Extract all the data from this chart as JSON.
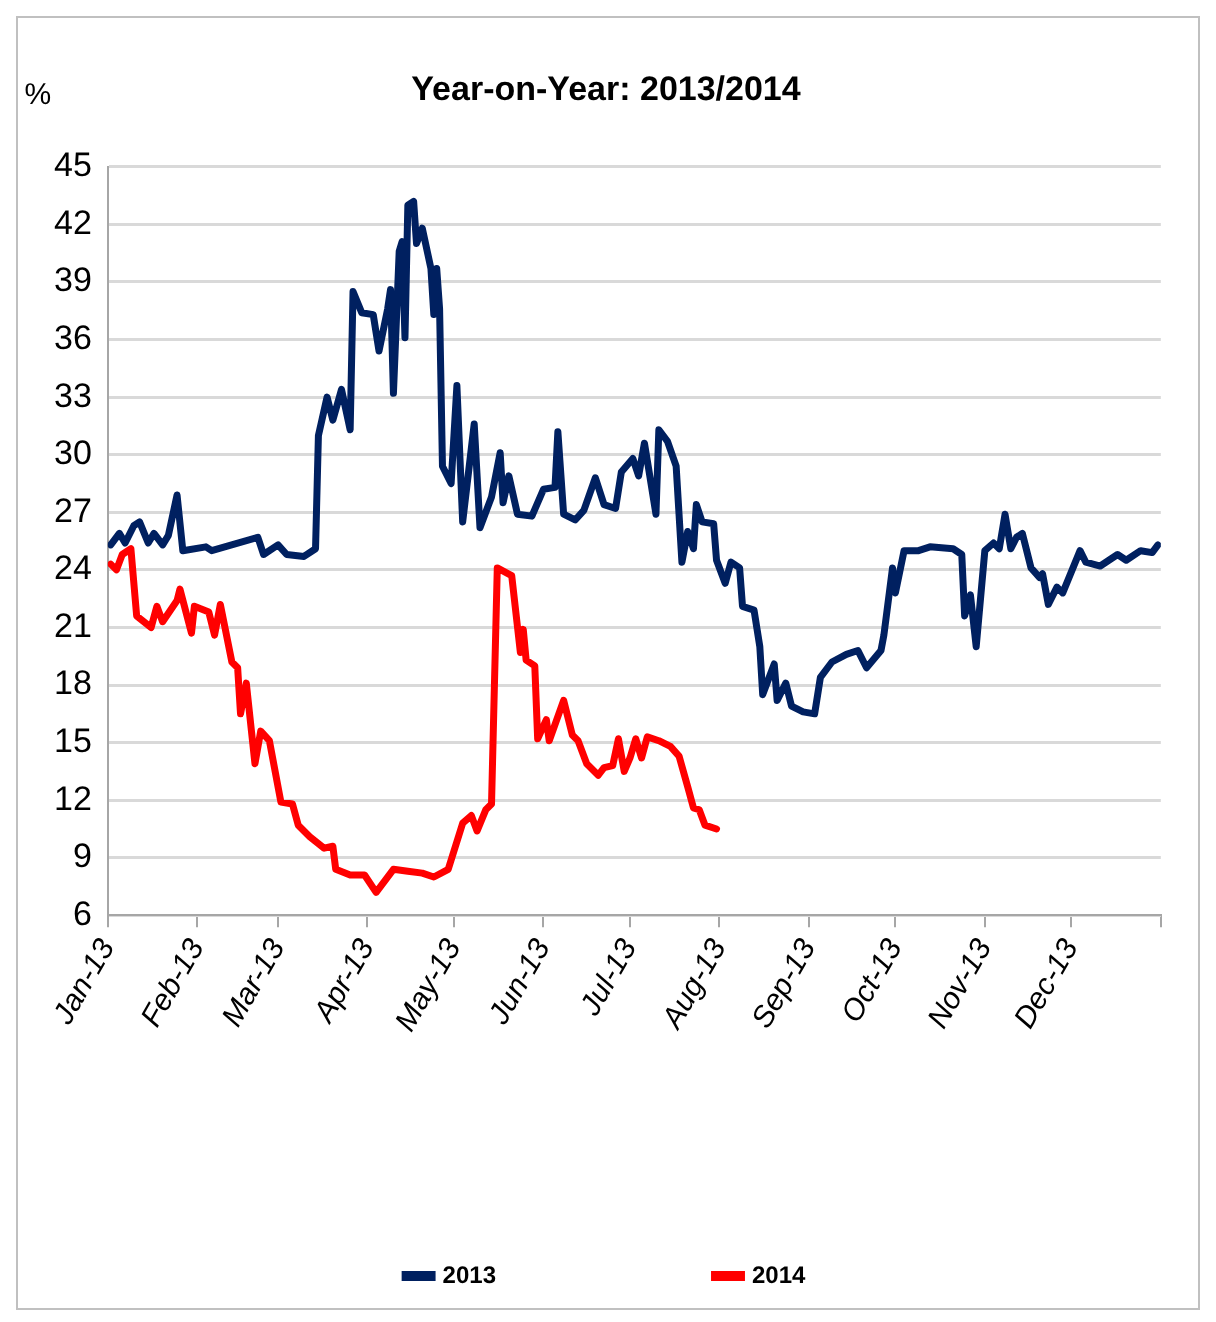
{
  "chart_data": {
    "type": "line",
    "title": "Year-on-Year: 2013/2014",
    "ylabel": "%",
    "xlim": [
      "2013-01-01",
      "2014-01-01"
    ],
    "xticks": [
      {
        "value": "2013-01-01",
        "label": "Jan-13"
      },
      {
        "value": "2013-02-01",
        "label": "Feb-13"
      },
      {
        "value": "2013-03-01",
        "label": "Mar-13"
      },
      {
        "value": "2013-04-01",
        "label": "Apr-13"
      },
      {
        "value": "2013-05-01",
        "label": "May-13"
      },
      {
        "value": "2013-06-01",
        "label": "Jun-13"
      },
      {
        "value": "2013-07-01",
        "label": "Jul-13"
      },
      {
        "value": "2013-08-01",
        "label": "Aug-13"
      },
      {
        "value": "2013-09-01",
        "label": "Sep-13"
      },
      {
        "value": "2013-10-01",
        "label": "Oct-13"
      },
      {
        "value": "2013-11-01",
        "label": "Nov-13"
      },
      {
        "value": "2013-12-01",
        "label": "Dec-13"
      },
      {
        "value": "2014-01-01",
        "label": null
      }
    ],
    "ylim": [
      6,
      45
    ],
    "yticks": [
      6,
      9,
      12,
      15,
      18,
      21,
      24,
      27,
      30,
      33,
      36,
      39,
      42,
      45
    ],
    "grid": "y",
    "legend": "bottom",
    "marker": "none",
    "line_style": "solid",
    "series": [
      {
        "name": "2013",
        "color": "#002060",
        "x": [
          "2013-01-02",
          "2013-01-05",
          "2013-01-07",
          "2013-01-10",
          "2013-01-12",
          "2013-01-15",
          "2013-01-17",
          "2013-01-20",
          "2013-01-22",
          "2013-01-25",
          "2013-01-27",
          "2013-02-04",
          "2013-02-06",
          "2013-02-22",
          "2013-02-24",
          "2013-03-01",
          "2013-03-04",
          "2013-03-10",
          "2013-03-14",
          "2013-03-15",
          "2013-03-18",
          "2013-03-20",
          "2013-03-23",
          "2013-03-26",
          "2013-03-27",
          "2013-03-30",
          "2013-04-03",
          "2013-04-05",
          "2013-04-08",
          "2013-04-09",
          "2013-04-10",
          "2013-04-12",
          "2013-04-13",
          "2013-04-14",
          "2013-04-15",
          "2013-04-17",
          "2013-04-18",
          "2013-04-20",
          "2013-04-23",
          "2013-04-24",
          "2013-04-25",
          "2013-04-26",
          "2013-04-27",
          "2013-04-30",
          "2013-05-02",
          "2013-05-04",
          "2013-05-08",
          "2013-05-10",
          "2013-05-14",
          "2013-05-17",
          "2013-05-18",
          "2013-05-20",
          "2013-05-23",
          "2013-05-28",
          "2013-06-01",
          "2013-06-05",
          "2013-06-06",
          "2013-06-08",
          "2013-06-12",
          "2013-06-15",
          "2013-06-19",
          "2013-06-22",
          "2013-06-26",
          "2013-06-28",
          "2013-07-02",
          "2013-07-04",
          "2013-07-06",
          "2013-07-07",
          "2013-07-10",
          "2013-07-11",
          "2013-07-14",
          "2013-07-17",
          "2013-07-19",
          "2013-07-21",
          "2013-07-23",
          "2013-07-24",
          "2013-07-26",
          "2013-07-30",
          "2013-07-31",
          "2013-08-03",
          "2013-08-05",
          "2013-08-08",
          "2013-08-09",
          "2013-08-13",
          "2013-08-15",
          "2013-08-16",
          "2013-08-20",
          "2013-08-21",
          "2013-08-24",
          "2013-08-26",
          "2013-08-30",
          "2013-09-03",
          "2013-09-05",
          "2013-09-09",
          "2013-09-14",
          "2013-09-18",
          "2013-09-21",
          "2013-09-26",
          "2013-09-27",
          "2013-09-30",
          "2013-10-01",
          "2013-10-04",
          "2013-10-09",
          "2013-10-13",
          "2013-10-21",
          "2013-10-24",
          "2013-10-25",
          "2013-10-27",
          "2013-10-29",
          "2013-11-01",
          "2013-11-04",
          "2013-11-06",
          "2013-11-08",
          "2013-11-10",
          "2013-11-12",
          "2013-11-14",
          "2013-11-17",
          "2013-11-20",
          "2013-11-21",
          "2013-11-23",
          "2013-11-26",
          "2013-11-28",
          "2013-12-04",
          "2013-12-06",
          "2013-12-11",
          "2013-12-17",
          "2013-12-20",
          "2013-12-25",
          "2013-12-29",
          "2013-12-31"
        ],
        "values": [
          25.3,
          25.9,
          25.4,
          26.3,
          26.5,
          25.4,
          25.9,
          25.3,
          25.8,
          27.9,
          25.0,
          25.2,
          25.0,
          25.7,
          24.8,
          25.3,
          24.8,
          24.7,
          25.1,
          31.0,
          33.0,
          31.8,
          33.4,
          31.3,
          38.5,
          37.4,
          37.3,
          35.4,
          37.6,
          38.6,
          33.2,
          40.6,
          41.1,
          36.1,
          43.0,
          43.2,
          41.0,
          41.8,
          39.7,
          37.3,
          39.7,
          37.6,
          29.4,
          28.5,
          33.6,
          26.5,
          31.6,
          26.2,
          27.8,
          30.1,
          27.5,
          28.9,
          26.9,
          26.8,
          28.2,
          28.3,
          31.2,
          26.9,
          26.6,
          27.1,
          28.8,
          27.4,
          27.2,
          29.1,
          29.8,
          28.9,
          30.6,
          29.7,
          26.9,
          31.3,
          30.7,
          29.4,
          24.4,
          26.0,
          25.1,
          27.4,
          26.5,
          26.4,
          24.5,
          23.3,
          24.4,
          24.1,
          22.1,
          21.9,
          20.0,
          17.5,
          19.1,
          17.2,
          18.1,
          16.9,
          16.6,
          16.5,
          18.4,
          19.2,
          19.6,
          19.8,
          18.9,
          19.8,
          20.6,
          24.1,
          22.8,
          25.0,
          25.0,
          25.2,
          25.1,
          24.8,
          21.6,
          22.7,
          20.0,
          25.0,
          25.4,
          25.1,
          26.9,
          25.1,
          25.7,
          25.9,
          24.1,
          23.6,
          23.8,
          22.2,
          23.1,
          22.8,
          25.0,
          24.4,
          24.2,
          24.8,
          24.5,
          25.0,
          24.9,
          25.3
        ]
      },
      {
        "name": "2014",
        "color": "#ff0000",
        "x": [
          "2013-01-02",
          "2013-01-04",
          "2013-01-06",
          "2013-01-09",
          "2013-01-11",
          "2013-01-16",
          "2013-01-18",
          "2013-01-20",
          "2013-01-25",
          "2013-01-26",
          "2013-01-30",
          "2013-01-31",
          "2013-02-05",
          "2013-02-07",
          "2013-02-09",
          "2013-02-13",
          "2013-02-15",
          "2013-02-16",
          "2013-02-18",
          "2013-02-21",
          "2013-02-23",
          "2013-02-26",
          "2013-03-02",
          "2013-03-06",
          "2013-03-08",
          "2013-03-12",
          "2013-03-17",
          "2013-03-20",
          "2013-03-21",
          "2013-03-26",
          "2013-03-31",
          "2013-04-04",
          "2013-04-10",
          "2013-04-15",
          "2013-04-20",
          "2013-04-24",
          "2013-04-29",
          "2013-05-04",
          "2013-05-07",
          "2013-05-09",
          "2013-05-12",
          "2013-05-14",
          "2013-05-16",
          "2013-05-21",
          "2013-05-24",
          "2013-05-25",
          "2013-05-26",
          "2013-05-29",
          "2013-05-30",
          "2013-06-02",
          "2013-06-03",
          "2013-06-08",
          "2013-06-11",
          "2013-06-13",
          "2013-06-16",
          "2013-06-20",
          "2013-06-22",
          "2013-06-25",
          "2013-06-27",
          "2013-06-29",
          "2013-07-01",
          "2013-07-03",
          "2013-07-05",
          "2013-07-07",
          "2013-07-11",
          "2013-07-15",
          "2013-07-18",
          "2013-07-21",
          "2013-07-23",
          "2013-07-25",
          "2013-07-27",
          "2013-07-31"
        ],
        "values": [
          24.3,
          24.0,
          24.8,
          25.1,
          21.6,
          21.0,
          22.1,
          21.3,
          22.4,
          23.0,
          20.7,
          22.1,
          21.8,
          20.6,
          22.2,
          19.2,
          18.9,
          16.5,
          18.1,
          13.9,
          15.6,
          15.1,
          11.9,
          11.8,
          10.7,
          10.1,
          9.5,
          9.6,
          8.4,
          8.1,
          8.1,
          7.2,
          8.4,
          8.3,
          8.2,
          8.0,
          8.4,
          10.8,
          11.2,
          10.4,
          11.5,
          11.8,
          24.1,
          23.7,
          19.7,
          20.9,
          19.3,
          19.0,
          15.2,
          16.2,
          15.1,
          17.2,
          15.4,
          15.1,
          13.9,
          13.3,
          13.7,
          13.8,
          15.2,
          13.5,
          14.2,
          15.2,
          14.2,
          15.3,
          15.1,
          14.8,
          14.3,
          12.7,
          11.6,
          11.5,
          10.7,
          10.5
        ]
      }
    ]
  }
}
